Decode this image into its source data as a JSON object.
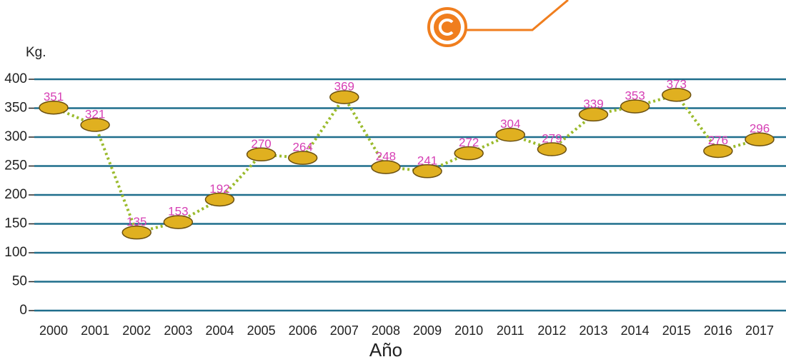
{
  "chart_data": {
    "type": "line",
    "y_label": "Kg.",
    "x_label": "Año",
    "categories": [
      "2000",
      "2001",
      "2002",
      "2003",
      "2004",
      "2005",
      "2006",
      "2007",
      "2008",
      "2009",
      "2010",
      "2011",
      "2012",
      "2013",
      "2014",
      "2015",
      "2016",
      "2017"
    ],
    "series": [
      {
        "color": "#9bbb2d",
        "values": [
          351,
          321,
          135,
          153,
          192,
          270,
          264,
          369,
          248,
          241,
          272,
          304,
          279,
          339,
          353,
          373,
          276,
          296
        ]
      }
    ],
    "label_color": "#d63fb4",
    "ylim": [
      0,
      400
    ],
    "yticks": [
      0,
      50,
      100,
      150,
      200,
      250,
      300,
      350,
      400
    ],
    "grid": true
  }
}
